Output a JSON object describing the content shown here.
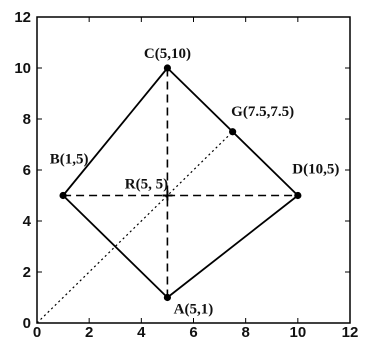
{
  "chart_data": {
    "type": "scatter",
    "xlim": [
      0,
      12
    ],
    "ylim": [
      0,
      12
    ],
    "x_ticks": [
      "0",
      "2",
      "4",
      "6",
      "8",
      "10",
      "12"
    ],
    "y_ticks": [
      "0",
      "2",
      "4",
      "6",
      "8",
      "10",
      "12"
    ],
    "grid": false,
    "points": [
      {
        "id": "A",
        "label": "A(5,1)",
        "x": 5,
        "y": 1,
        "marker": true
      },
      {
        "id": "B",
        "label": "B(1,5)",
        "x": 1,
        "y": 5,
        "marker": true
      },
      {
        "id": "C",
        "label": "C(5,10)",
        "x": 5,
        "y": 10,
        "marker": true
      },
      {
        "id": "D",
        "label": "D(10,5)",
        "x": 10,
        "y": 5,
        "marker": true
      },
      {
        "id": "G",
        "label": "G(7.5,7.5)",
        "x": 7.5,
        "y": 7.5,
        "marker": true
      },
      {
        "id": "R",
        "label": "R(5, 5)",
        "x": 5,
        "y": 5,
        "marker": false
      }
    ],
    "segments": [
      {
        "id": "AB",
        "from": "A",
        "to": "B",
        "style": "solid"
      },
      {
        "id": "BC",
        "from": "B",
        "to": "C",
        "style": "solid"
      },
      {
        "id": "CD",
        "from": "C",
        "to": "D",
        "style": "solid"
      },
      {
        "id": "DA",
        "from": "D",
        "to": "A",
        "style": "solid"
      },
      {
        "id": "BD",
        "from": "B",
        "to": "D",
        "style": "dashed"
      },
      {
        "id": "AC",
        "from": "A",
        "to": "C",
        "style": "dashed"
      },
      {
        "id": "OG",
        "from_xy": [
          0,
          0
        ],
        "to": "G",
        "style": "dotted"
      }
    ],
    "colors": {
      "line": "#000000",
      "axis": "#000000",
      "background": "#ffffff"
    }
  }
}
